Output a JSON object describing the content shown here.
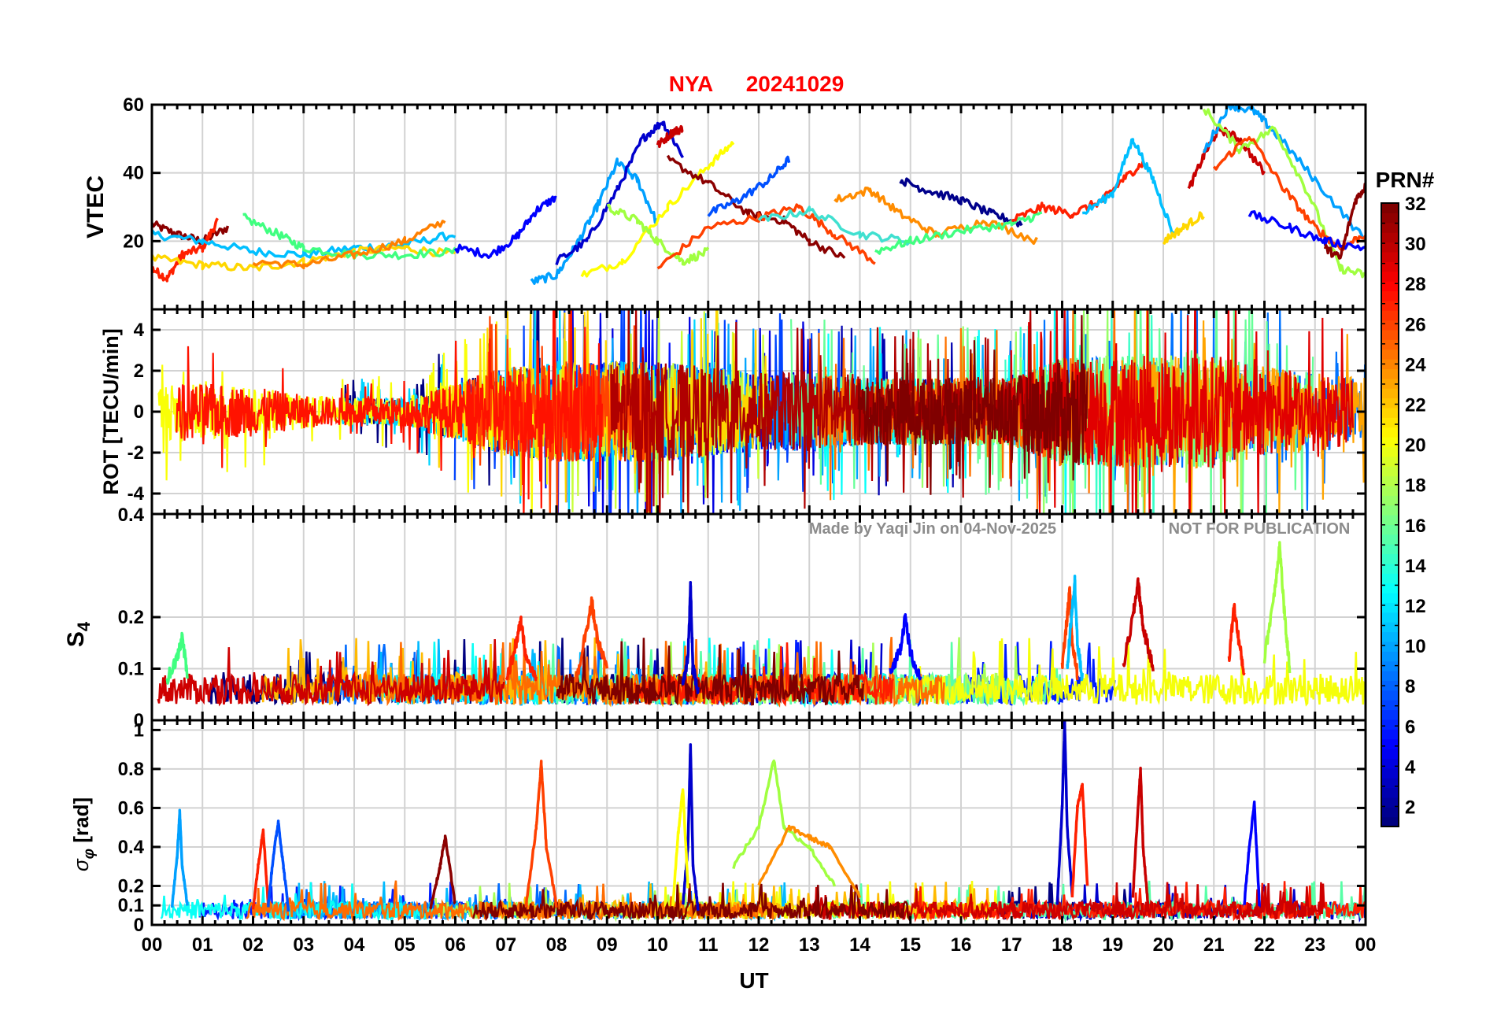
{
  "figure": {
    "station": "NYA",
    "date": "20241029",
    "x_label": "UT",
    "watermark_author": "Made by Yaqi Jin on 04-Nov-2025",
    "watermark_notice": "NOT FOR PUBLICATION",
    "colorbar_title": "PRN#",
    "colors": {
      "title": "#ff0000",
      "watermark": "#8c8c8c",
      "grid": "#d2d2d2"
    }
  },
  "chart_data": [
    {
      "type": "line",
      "panel": "vtec",
      "ylabel": "VTEC",
      "ylim": [
        0,
        60
      ],
      "yticks": [
        20,
        40,
        60
      ],
      "yticklabels": [
        "20",
        "40",
        "60"
      ],
      "xlim": [
        0,
        24
      ],
      "xticks": [
        0,
        1,
        2,
        3,
        4,
        5,
        6,
        7,
        8,
        9,
        10,
        11,
        12,
        13,
        14,
        15,
        16,
        17,
        18,
        19,
        20,
        21,
        22,
        23,
        24
      ],
      "xticklabels": [
        "00",
        "01",
        "02",
        "03",
        "04",
        "05",
        "06",
        "07",
        "08",
        "09",
        "10",
        "11",
        "12",
        "13",
        "14",
        "15",
        "16",
        "17",
        "18",
        "19",
        "20",
        "21",
        "22",
        "23",
        "00"
      ],
      "grid": true,
      "series": [
        {
          "color": "#8b0000",
          "x": [
            0,
            0.5,
            1,
            1.5
          ],
          "y": [
            25,
            22,
            20,
            24
          ]
        },
        {
          "color": "#ff2000",
          "x": [
            0,
            0.3,
            0.6,
            1,
            1.3
          ],
          "y": [
            12,
            9,
            16,
            18,
            26
          ]
        },
        {
          "color": "#00bfff",
          "x": [
            0,
            1,
            2,
            3,
            4,
            5,
            6
          ],
          "y": [
            22,
            20,
            17,
            16,
            18,
            19,
            22
          ]
        },
        {
          "color": "#ffd700",
          "x": [
            0,
            1,
            2,
            3,
            4,
            5,
            6
          ],
          "y": [
            15,
            13,
            12,
            14,
            17,
            18,
            16
          ]
        },
        {
          "color": "#40ff80",
          "x": [
            1.8,
            2.5,
            3,
            4,
            5,
            6
          ],
          "y": [
            27,
            22,
            18,
            16,
            16,
            17
          ]
        },
        {
          "color": "#ff8000",
          "x": [
            2,
            3,
            4,
            5,
            5.8
          ],
          "y": [
            14,
            13,
            16,
            20,
            26
          ]
        },
        {
          "color": "#0000ff",
          "x": [
            6,
            6.7,
            7.2,
            7.6,
            8
          ],
          "y": [
            18,
            16,
            21,
            29,
            33
          ]
        },
        {
          "color": "#00a0ff",
          "x": [
            7.5,
            8,
            8.4,
            8.8,
            9.2,
            9.6,
            10
          ],
          "y": [
            8,
            10,
            19,
            30,
            43,
            38,
            25
          ]
        },
        {
          "color": "#0000cd",
          "x": [
            8,
            8.6,
            9.2,
            9.7,
            10.1,
            10.5
          ],
          "y": [
            14,
            20,
            35,
            50,
            55,
            45
          ]
        },
        {
          "color": "#c80000",
          "x": [
            10,
            10.3,
            10.5
          ],
          "y": [
            48,
            52,
            53
          ]
        },
        {
          "color": "#ffff00",
          "x": [
            8.5,
            9.3,
            10.2,
            11,
            11.5
          ],
          "y": [
            10,
            14,
            30,
            42,
            49
          ]
        },
        {
          "color": "#a0ff40",
          "x": [
            9,
            9.6,
            10,
            10.5,
            11
          ],
          "y": [
            30,
            26,
            20,
            14,
            17
          ]
        },
        {
          "color": "#8b0000",
          "x": [
            10.2,
            11,
            11.8,
            12.5,
            13,
            13.7
          ],
          "y": [
            44,
            37,
            28,
            26,
            20,
            15
          ]
        },
        {
          "color": "#ff4000",
          "x": [
            10,
            11,
            12,
            12.8,
            13.5,
            14.3
          ],
          "y": [
            12,
            24,
            27,
            30,
            22,
            14
          ]
        },
        {
          "color": "#0050ff",
          "x": [
            11,
            11.6,
            12.2,
            12.6
          ],
          "y": [
            28,
            32,
            38,
            44
          ]
        },
        {
          "color": "#40e0d0",
          "x": [
            12,
            13,
            14,
            15
          ],
          "y": [
            26,
            29,
            22,
            20
          ]
        },
        {
          "color": "#ff8c00",
          "x": [
            13.5,
            14.2,
            14.8,
            15.5,
            16.5,
            17.5
          ],
          "y": [
            32,
            35,
            28,
            22,
            26,
            20
          ]
        },
        {
          "color": "#00008b",
          "x": [
            14.8,
            15.3,
            16,
            16.6,
            17.2
          ],
          "y": [
            38,
            35,
            32,
            28,
            25
          ]
        },
        {
          "color": "#40ff80",
          "x": [
            14.3,
            15,
            16,
            17,
            17.6
          ],
          "y": [
            17,
            20,
            23,
            25,
            28
          ]
        },
        {
          "color": "#ff2000",
          "x": [
            17,
            17.6,
            18.2,
            18.8,
            19.2,
            19.6
          ],
          "y": [
            26,
            30,
            28,
            32,
            38,
            43
          ]
        },
        {
          "color": "#00bfff",
          "x": [
            18.4,
            19,
            19.4,
            19.8,
            20.2
          ],
          "y": [
            28,
            34,
            50,
            38,
            22
          ]
        },
        {
          "color": "#ffd700",
          "x": [
            20,
            20.4,
            20.8
          ],
          "y": [
            20,
            24,
            28
          ]
        },
        {
          "color": "#c80000",
          "x": [
            20.5,
            20.8,
            21.1,
            21.5,
            22
          ],
          "y": [
            35,
            45,
            53,
            50,
            40
          ]
        },
        {
          "color": "#00a0ff",
          "x": [
            20.8,
            21.3,
            21.8,
            22.2,
            23,
            24
          ],
          "y": [
            46,
            60,
            58,
            52,
            38,
            20
          ]
        },
        {
          "color": "#a0ff40",
          "x": [
            20.8,
            21.5,
            22.2,
            22.9,
            23.5,
            24
          ],
          "y": [
            59,
            47,
            53,
            33,
            12,
            10
          ]
        },
        {
          "color": "#ff4000",
          "x": [
            21,
            21.7,
            22.4,
            23,
            23.5,
            24
          ],
          "y": [
            41,
            51,
            35,
            24,
            18,
            22
          ]
        },
        {
          "color": "#0000ff",
          "x": [
            21.7,
            22.5,
            23.2,
            24
          ],
          "y": [
            28,
            24,
            20,
            18
          ]
        },
        {
          "color": "#8b0000",
          "x": [
            23.2,
            23.5,
            23.8,
            24
          ],
          "y": [
            18,
            15,
            32,
            36
          ]
        }
      ]
    },
    {
      "type": "line",
      "panel": "rot",
      "ylabel": "ROT [TECU/min]",
      "ylim": [
        -5,
        5
      ],
      "yticks": [
        -4,
        -2,
        0,
        2,
        4
      ],
      "yticklabels": [
        "-4",
        "-2",
        "0",
        "2",
        "4"
      ],
      "xlim": [
        0,
        24
      ],
      "grid": true,
      "note": "Dense high-frequency traces; amplitude envelope per hour (TECU/min)",
      "envelope_x": [
        0,
        1,
        2,
        3,
        4,
        5,
        6,
        7,
        8,
        9,
        10,
        11,
        12,
        13,
        14,
        15,
        16,
        17,
        18,
        19,
        20,
        21,
        22,
        23,
        24
      ],
      "envelope_amp": [
        2.5,
        2.5,
        2.2,
        1.5,
        1.2,
        1.3,
        2.5,
        4,
        4.5,
        4.5,
        4.5,
        4,
        3.5,
        3.5,
        3,
        3,
        3,
        3,
        4.8,
        5,
        5,
        5,
        4,
        3.5,
        3
      ]
    },
    {
      "type": "line",
      "panel": "s4",
      "ylabel": "S4",
      "ylim": [
        0,
        0.4
      ],
      "yticks": [
        0,
        0.1,
        0.2
      ],
      "yticklabels": [
        "0",
        "0.1",
        "0.2"
      ],
      "xlim": [
        0,
        24
      ],
      "grid": true,
      "series": [
        {
          "color": "#0000cd",
          "x": [
            10.5,
            10.6,
            10.65,
            10.7,
            10.8
          ],
          "y": [
            0.07,
            0.12,
            0.26,
            0.1,
            0.06
          ]
        },
        {
          "color": "#ff4000",
          "x": [
            8.4,
            8.6,
            8.7,
            8.8,
            9
          ],
          "y": [
            0.08,
            0.18,
            0.23,
            0.16,
            0.1
          ]
        },
        {
          "color": "#ff2000",
          "x": [
            7,
            7.2,
            7.3,
            7.4,
            7.6
          ],
          "y": [
            0.07,
            0.15,
            0.19,
            0.12,
            0.08
          ]
        },
        {
          "color": "#0000ff",
          "x": [
            14.6,
            14.8,
            14.9,
            15,
            15.2
          ],
          "y": [
            0.09,
            0.14,
            0.2,
            0.13,
            0.08
          ]
        },
        {
          "color": "#ff4000",
          "x": [
            18,
            18.1,
            18.15,
            18.2,
            18.3
          ],
          "y": [
            0.1,
            0.2,
            0.25,
            0.15,
            0.09
          ]
        },
        {
          "color": "#00bfff",
          "x": [
            18.1,
            18.2,
            18.25,
            18.3,
            18.4
          ],
          "y": [
            0.1,
            0.22,
            0.27,
            0.15,
            0.08
          ]
        },
        {
          "color": "#c80000",
          "x": [
            19.2,
            19.4,
            19.5,
            19.6,
            19.8
          ],
          "y": [
            0.1,
            0.2,
            0.27,
            0.18,
            0.1
          ]
        },
        {
          "color": "#ff2000",
          "x": [
            21.3,
            21.4,
            21.5,
            21.6
          ],
          "y": [
            0.12,
            0.22,
            0.15,
            0.09
          ]
        },
        {
          "color": "#a0ff40",
          "x": [
            22,
            22.2,
            22.3,
            22.4,
            22.5
          ],
          "y": [
            0.12,
            0.25,
            0.34,
            0.2,
            0.1
          ]
        },
        {
          "color": "#40ff80",
          "x": [
            0.3,
            0.5,
            0.6,
            0.7
          ],
          "y": [
            0.08,
            0.12,
            0.16,
            0.09
          ]
        }
      ],
      "baseline_range": [
        0.03,
        0.09
      ]
    },
    {
      "type": "line",
      "panel": "sigma_phi",
      "ylabel": "σ_φ [rad]",
      "ylim": [
        0,
        1.05
      ],
      "yticks": [
        0,
        0.1,
        0.2,
        0.4,
        0.6,
        0.8,
        1
      ],
      "yticklabels": [
        "0",
        "0.1",
        "0.2",
        "0.4",
        "0.6",
        "0.8",
        "1"
      ],
      "xlim": [
        0,
        24
      ],
      "grid": true,
      "series": [
        {
          "color": "#00a0ff",
          "x": [
            0.4,
            0.5,
            0.55,
            0.6,
            0.7
          ],
          "y": [
            0.1,
            0.35,
            0.58,
            0.3,
            0.1
          ]
        },
        {
          "color": "#ff2000",
          "x": [
            2,
            2.1,
            2.2,
            2.3
          ],
          "y": [
            0.08,
            0.3,
            0.49,
            0.1
          ]
        },
        {
          "color": "#0050ff",
          "x": [
            2.3,
            2.4,
            2.5,
            2.6,
            2.7
          ],
          "y": [
            0.1,
            0.35,
            0.53,
            0.3,
            0.08
          ]
        },
        {
          "color": "#ff4000",
          "x": [
            7.4,
            7.6,
            7.7,
            7.8,
            8
          ],
          "y": [
            0.1,
            0.5,
            0.83,
            0.4,
            0.1
          ]
        },
        {
          "color": "#0000cd",
          "x": [
            10.5,
            10.6,
            10.65,
            10.7,
            10.8
          ],
          "y": [
            0.1,
            0.4,
            0.93,
            0.3,
            0.08
          ]
        },
        {
          "color": "#ffff00",
          "x": [
            10.3,
            10.4,
            10.5,
            10.6
          ],
          "y": [
            0.1,
            0.45,
            0.7,
            0.2
          ]
        },
        {
          "color": "#a0ff40",
          "x": [
            11.5,
            12,
            12.3,
            12.5,
            13,
            13.5
          ],
          "y": [
            0.3,
            0.5,
            0.85,
            0.5,
            0.4,
            0.2
          ]
        },
        {
          "color": "#ff8c00",
          "x": [
            12,
            12.6,
            13,
            13.4,
            14
          ],
          "y": [
            0.2,
            0.5,
            0.45,
            0.4,
            0.15
          ]
        },
        {
          "color": "#0000cd",
          "x": [
            17.9,
            18,
            18.05,
            18.1,
            18.2
          ],
          "y": [
            0.1,
            0.6,
            1.04,
            0.5,
            0.15
          ]
        },
        {
          "color": "#ff2000",
          "x": [
            18.2,
            18.3,
            18.4,
            18.5
          ],
          "y": [
            0.15,
            0.6,
            0.72,
            0.2
          ]
        },
        {
          "color": "#c80000",
          "x": [
            19.4,
            19.5,
            19.55,
            19.6,
            19.7
          ],
          "y": [
            0.15,
            0.6,
            0.8,
            0.4,
            0.1
          ]
        },
        {
          "color": "#0000ff",
          "x": [
            21.6,
            21.7,
            21.8,
            21.9
          ],
          "y": [
            0.1,
            0.4,
            0.62,
            0.1
          ]
        },
        {
          "color": "#8b0000",
          "x": [
            5.5,
            5.7,
            5.8,
            6
          ],
          "y": [
            0.08,
            0.3,
            0.45,
            0.1
          ]
        }
      ],
      "baseline_range": [
        0.03,
        0.12
      ]
    }
  ],
  "colorbar": {
    "ticks": [
      "2",
      "4",
      "6",
      "8",
      "10",
      "12",
      "14",
      "16",
      "18",
      "20",
      "22",
      "24",
      "26",
      "28",
      "30",
      "32"
    ],
    "values": [
      2,
      4,
      6,
      8,
      10,
      12,
      14,
      16,
      18,
      20,
      22,
      24,
      26,
      28,
      30,
      32
    ],
    "range": [
      1,
      32
    ],
    "colormap": "jet"
  }
}
